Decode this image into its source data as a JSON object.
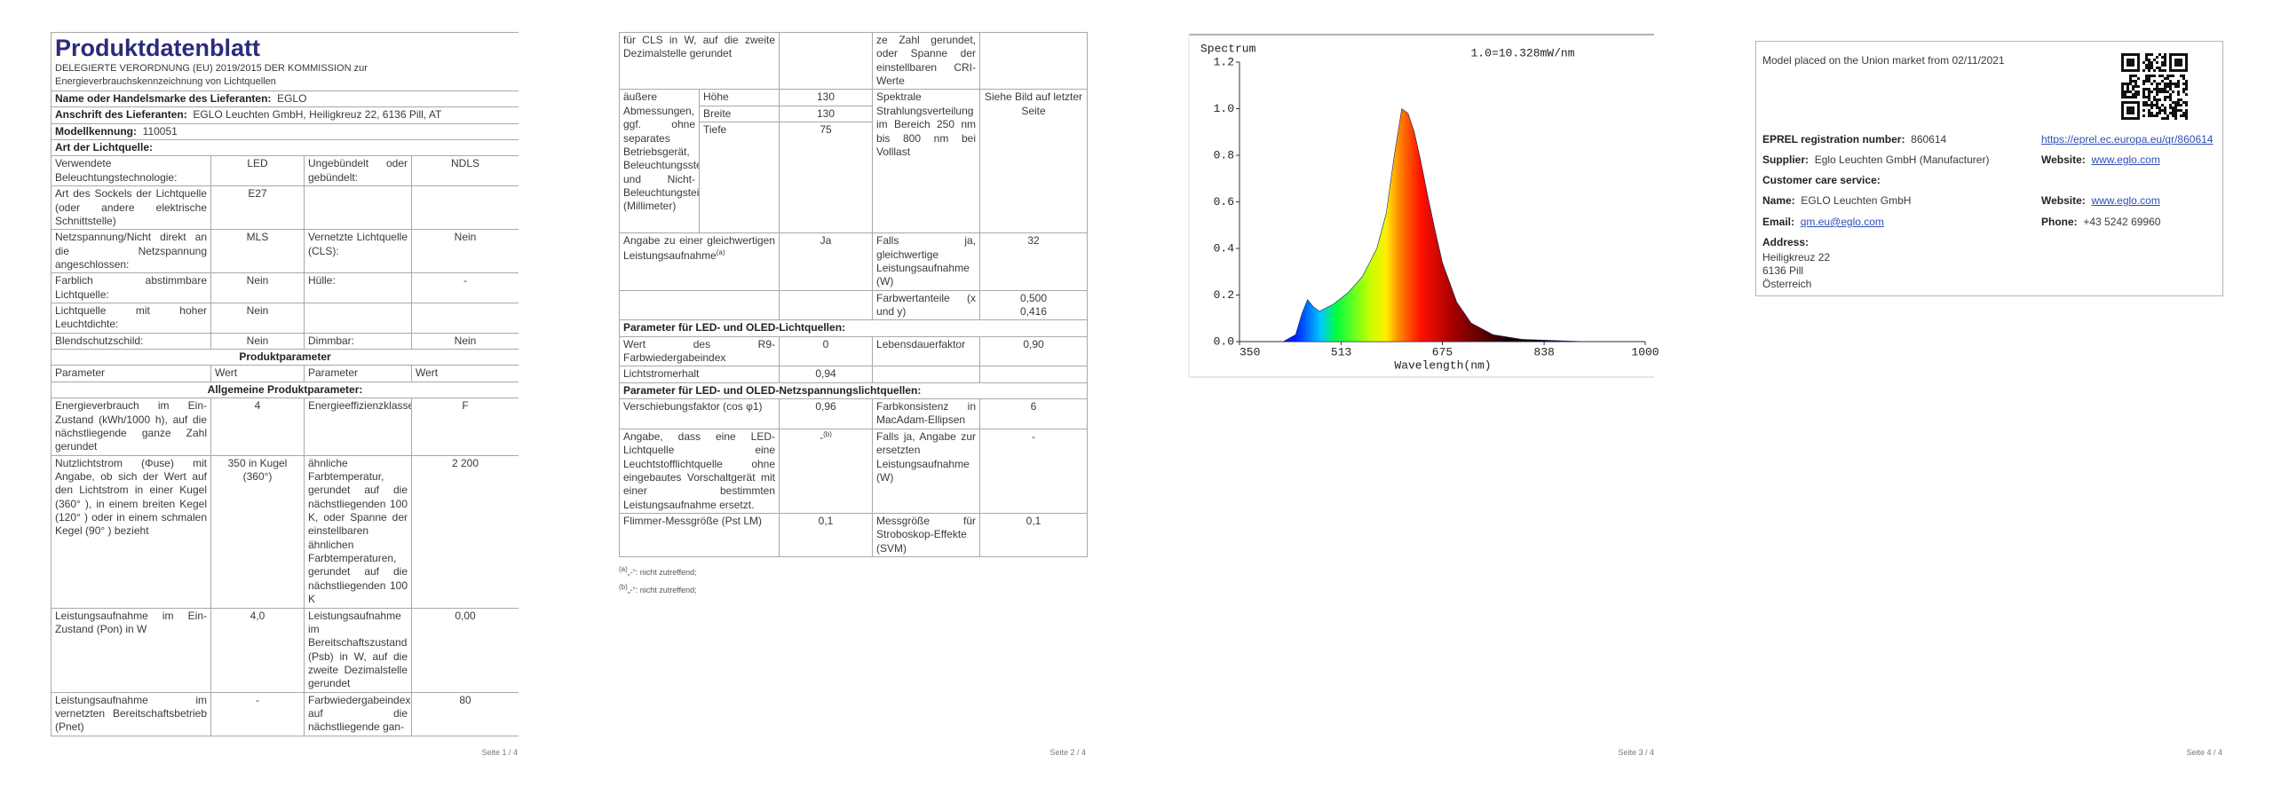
{
  "page1": {
    "title": "Produktdatenblatt",
    "regulation": "DELEGIERTE VERORDNUNG (EU) 2019/2015 DER KOMMISSION zur Energieverbrauchskennzeichnung von Lichtquellen",
    "supplier_name": {
      "label": "Name oder Handelsmarke des Lieferanten:",
      "value": "EGLO"
    },
    "supplier_address": {
      "label": "Anschrift des Lieferanten:",
      "value": "EGLO Leuchten GmbH, Heiligkreuz 22, 6136 Pill, AT"
    },
    "model": {
      "label": "Modellkennung:",
      "value": "110051"
    },
    "light_source_heading": "Art der Lichtquelle:",
    "light_source_rows": [
      [
        "Verwendete Beleuchtungstechnologie:",
        "LED",
        "Ungebündelt oder gebündelt:",
        "NDLS"
      ],
      [
        "Art des Sockels der Lichtquelle (oder andere elektrische Schnittstelle)",
        "E27",
        null,
        null
      ],
      [
        "Netzspannung/Nicht direkt an die Netzspannung angeschlossen:",
        "MLS",
        "Vernetzte Lichtquelle (CLS):",
        "Nein"
      ],
      [
        "Farblich abstimmbare Lichtquelle:",
        "Nein",
        "Hülle:",
        "-"
      ],
      [
        "Lichtquelle mit hoher Leuchtdichte:",
        "Nein",
        null,
        null
      ],
      [
        "Blendschutzschild:",
        "Nein",
        "Dimmbar:",
        "Nein"
      ]
    ],
    "product_parameters_heading": "Produktparameter",
    "header": [
      "Parameter",
      "Wert",
      "Parameter",
      "Wert"
    ],
    "general_heading": "Allgemeine Produktparameter:",
    "general_rows": [
      [
        "Energieverbrauch im Ein-Zustand (kWh/1000 h), auf die nächstliegende ganze Zahl gerundet",
        "4",
        "Energieeffizienzklasse",
        "F"
      ],
      [
        "Nutzlichtstrom (Φuse) mit Angabe, ob sich der Wert auf den Lichtstrom in einer Kugel (360° ), in einem breiten Kegel (120° ) oder in einem schmalen Kegel (90° ) bezieht",
        "350 in Kugel (360°)",
        "ähnliche Farbtemperatur, gerundet auf die nächstliegenden 100 K, oder Spanne der einstellbaren ähnlichen Farbtemperaturen, gerundet auf die nächstliegenden 100 K",
        "2 200"
      ],
      [
        "Leistungsaufnahme im Ein-Zustand (Pon) in W",
        "4,0",
        "Leistungsaufnahme im Bereitschaftszustand (Psb) in W, auf die zweite Dezimalstelle gerundet",
        "0,00"
      ],
      [
        "Leistungsaufnahme im vernetzten Bereitschaftsbetrieb (Pnet)",
        "-",
        "Farbwiedergabeindex, auf die nächstliegende gan-",
        "80"
      ]
    ],
    "footer": "Seite 1 / 4"
  },
  "page2": {
    "rows_a": [
      [
        "für CLS in W, auf die zweite Dezimalstelle gerundet",
        null,
        "ze Zahl gerundet, oder Spanne der einstellbaren CRI-Werte",
        null
      ]
    ],
    "dimensions": {
      "label": "äußere Abmessungen, ggf. ohne separates Betriebsgerät, Beleuchtungssteuerungsteile und Nicht-Beleuchtungsteile (Millimeter)",
      "parts": [
        [
          "Höhe",
          "130"
        ],
        [
          "Breite",
          "130"
        ],
        [
          "Tiefe",
          "75"
        ]
      ],
      "spectrum_label": "Spektrale Strahlungsverteilung im Bereich 250 nm bis 800 nm bei Volllast",
      "spectrum_value": "Siehe Bild auf letzter Seite"
    },
    "rows_b": [
      [
        {
          "text": "Angabe zu einer gleichwertigen Leistungsaufnahme",
          "note": "(a)"
        },
        "Ja",
        "Falls ja, gleichwertige Leistungsaufnahme (W)",
        "32"
      ],
      [
        null,
        null,
        "Farbwertanteile (x und y)",
        [
          "0,500",
          "0,416"
        ]
      ]
    ],
    "led_heading": "Parameter für LED- und OLED-Lichtquellen:",
    "led_rows": [
      [
        "Wert des R9-Farbwiedergabeindex",
        "0",
        "Lebensdauerfaktor",
        "0,90"
      ],
      [
        "Lichtstromerhalt",
        "0,94",
        null,
        null
      ]
    ],
    "mains_heading": "Parameter für LED- und OLED-Netzspannungslichtquellen:",
    "mains_rows": [
      [
        "Verschiebungsfaktor (cos φ1)",
        "0,96",
        "Farbkonsistenz in MacAdam-Ellipsen",
        "6"
      ],
      [
        "Angabe, dass eine LED-Lichtquelle eine Leuchtstofflichtquelle ohne eingebautes Vorschaltgerät mit einer bestimmten Leistungsaufnahme ersetzt.",
        {
          "text": "-",
          "note": "(b)"
        },
        "Falls ja, Angabe zur ersetzten Leistungsaufnahme (W)",
        "-"
      ],
      [
        "Flimmer-Messgröße (Pst LM)",
        "0,1",
        "Messgröße für Stroboskop-Effekte (SVM)",
        "0,1"
      ]
    ],
    "footnotes": [
      {
        "mark": "(a)",
        "text": "„-“: nicht zutreffend;"
      },
      {
        "mark": "(b)",
        "text": "„-“: nicht zutreffend;"
      }
    ],
    "footer": "Seite 2 / 4"
  },
  "page3": {
    "spectrum": {
      "type": "area",
      "title": "Spectrum",
      "annotation": "1.0=10.328mW/nm",
      "xlabel": "Wavelength(nm)",
      "xlim": [
        350,
        1000
      ],
      "ylim": [
        0,
        1.2
      ],
      "xticks": [
        350,
        513,
        675,
        838,
        1000
      ],
      "yticks": [
        {
          "value": 0,
          "label": "0.0"
        },
        {
          "value": 0.2,
          "label": "0.2"
        },
        {
          "value": 0.4,
          "label": "0.4"
        },
        {
          "value": 0.6,
          "label": "0.6"
        },
        {
          "value": 0.8,
          "label": "0.8"
        },
        {
          "value": 1.0,
          "label": "1.0"
        },
        {
          "value": 1.2,
          "label": "1.2"
        }
      ],
      "x": [
        350,
        420,
        440,
        450,
        459,
        468,
        478,
        500,
        524,
        547,
        570,
        585,
        598,
        610,
        620,
        630,
        640,
        652,
        664,
        675,
        698,
        721,
        756,
        802,
        900,
        1000
      ],
      "values": [
        0,
        0,
        0.03,
        0.12,
        0.18,
        0.15,
        0.13,
        0.16,
        0.21,
        0.28,
        0.4,
        0.55,
        0.8,
        1.0,
        0.98,
        0.9,
        0.78,
        0.62,
        0.47,
        0.34,
        0.17,
        0.08,
        0.03,
        0.01,
        0,
        0
      ]
    },
    "footer": "Seite 3 / 4"
  },
  "page4": {
    "market": "Model placed on the Union market from 02/11/2021",
    "eprel": {
      "label": "EPREL registration number:",
      "value": "860614",
      "link": "https://eprel.ec.europa.eu/qr/860614"
    },
    "supplier": {
      "label": "Supplier:",
      "value": "Eglo Leuchten GmbH (Manufacturer)"
    },
    "website": {
      "label": "Website:",
      "value": "www.eglo.com"
    },
    "customer_care": "Customer care service:",
    "name": {
      "label": "Name:",
      "value": "EGLO Leuchten GmbH"
    },
    "care_website": {
      "label": "Website:",
      "value": "www.eglo.com"
    },
    "email": {
      "label": "Email:",
      "value": "qm.eu@eglo.com"
    },
    "phone": {
      "label": "Phone:",
      "value": "+43 5242 69960"
    },
    "address": {
      "label": "Address:",
      "lines": [
        "Heiligkreuz 22",
        "6136 Pill",
        "Österreich"
      ]
    },
    "footer": "Seite 4 / 4"
  }
}
